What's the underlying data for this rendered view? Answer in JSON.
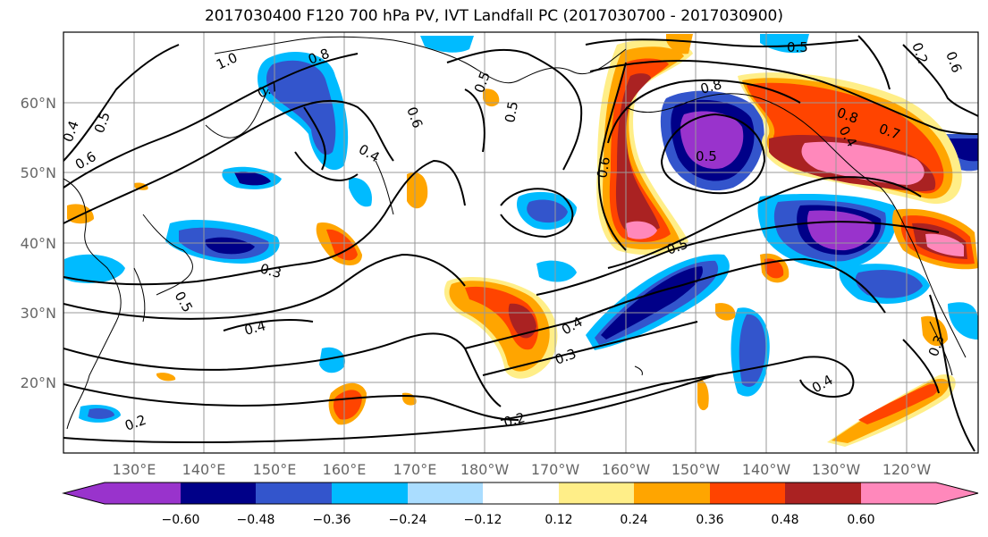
{
  "title": "2017030400 F120 700 hPa PV, IVT Landfall PC (2017030700 - 2017030900)",
  "map": {
    "lat_labels": [
      "60°N",
      "50°N",
      "40°N",
      "30°N",
      "20°N"
    ],
    "lon_labels": [
      "130°E",
      "140°E",
      "150°E",
      "160°E",
      "170°E",
      "180°W",
      "170°W",
      "160°W",
      "150°W",
      "140°W",
      "130°W",
      "120°W"
    ],
    "contour_labels": [
      "1.0",
      "0.8",
      "0.7",
      "0.6",
      "0.5",
      "0.4",
      "0.6",
      "0.5",
      "0.4",
      "0.3",
      "0.5",
      "0.4",
      "0.3",
      "0.4",
      "0.2",
      "0.2",
      "0.5",
      "0.5",
      "0.8",
      "0.6",
      "0.5",
      "0.8",
      "0.7",
      "0.4",
      "0.3",
      "0.4",
      "0.5",
      "0.6",
      "0.2"
    ]
  },
  "colorbar": {
    "tick_labels": [
      "−0.60",
      "−0.48",
      "−0.36",
      "−0.24",
      "−0.12",
      "0.12",
      "0.24",
      "0.36",
      "0.48",
      "0.60"
    ],
    "colors": [
      "#9933cc",
      "#000088",
      "#3355cc",
      "#00bbff",
      "#aaddff",
      "#ffffff",
      "#ffee88",
      "#ffa500",
      "#ff4400",
      "#aa2222",
      "#ff88bb"
    ]
  }
}
